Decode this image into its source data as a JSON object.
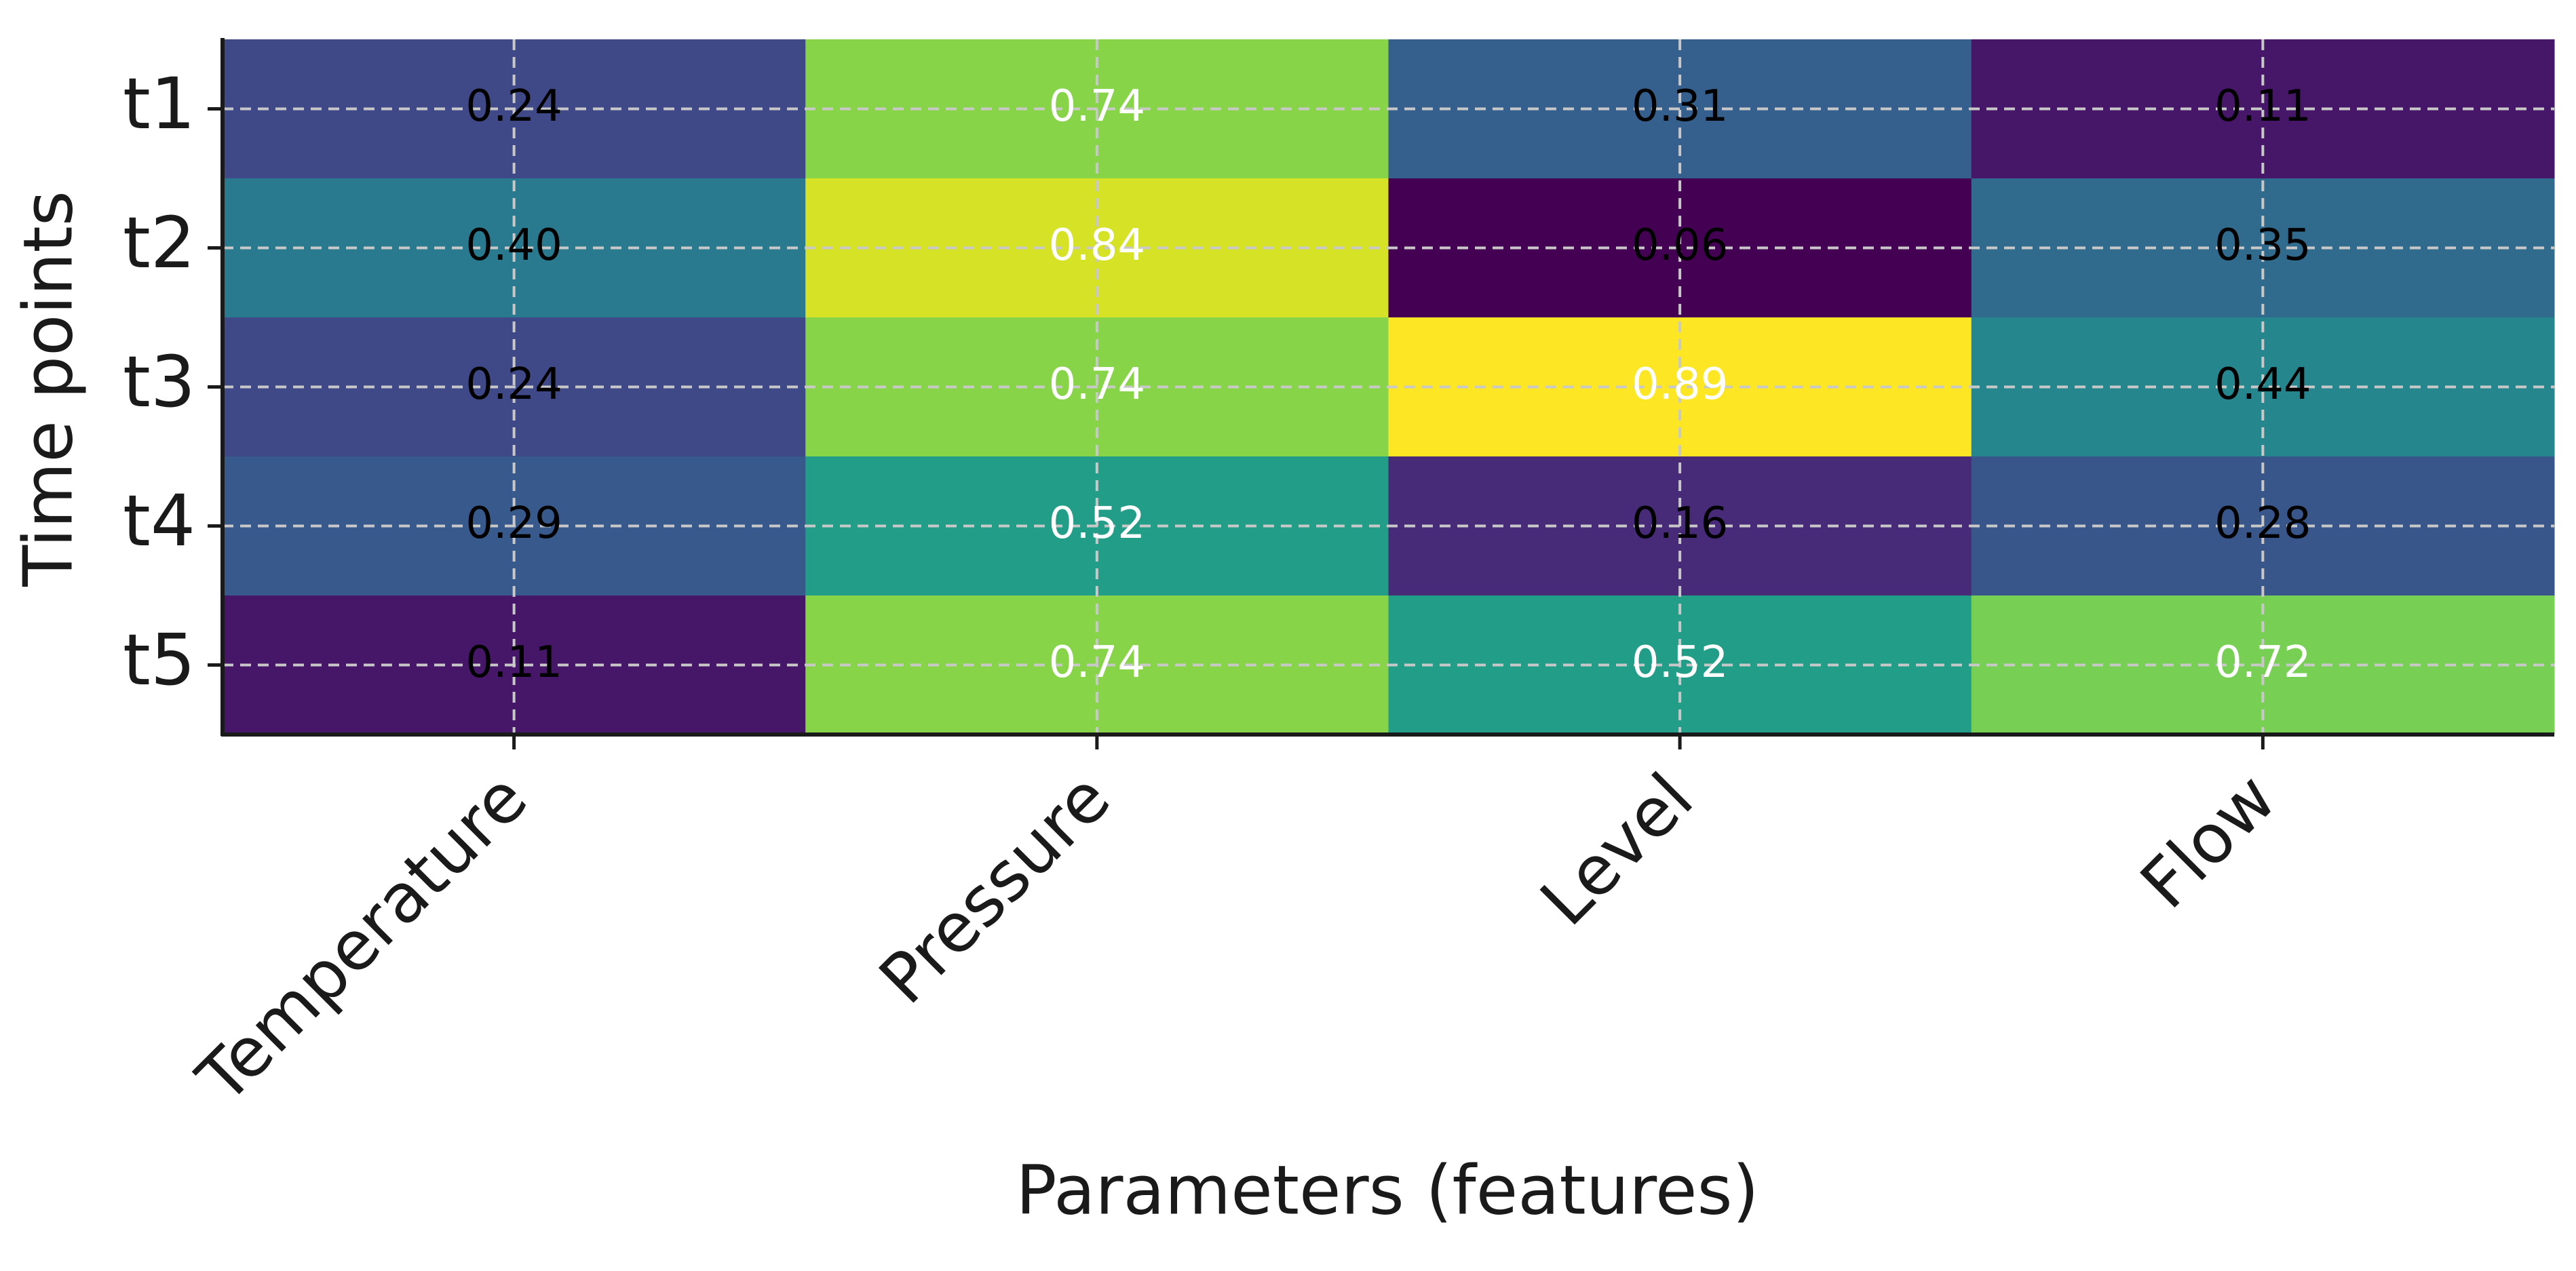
{
  "chart_data": {
    "type": "heatmap",
    "title": "",
    "xlabel": "Parameters (features)",
    "ylabel": "Time points",
    "x_categories": [
      "Temperature",
      "Pressure",
      "Level",
      "Flow"
    ],
    "y_categories": [
      "t1",
      "t2",
      "t3",
      "t4",
      "t5"
    ],
    "values": [
      [
        0.24,
        0.74,
        0.31,
        0.11
      ],
      [
        0.4,
        0.84,
        0.06,
        0.35
      ],
      [
        0.24,
        0.74,
        0.89,
        0.44
      ],
      [
        0.29,
        0.52,
        0.16,
        0.28
      ],
      [
        0.11,
        0.74,
        0.52,
        0.72
      ]
    ],
    "value_labels": [
      [
        "0.24",
        "0.74",
        "0.31",
        "0.11"
      ],
      [
        "0.40",
        "0.84",
        "0.06",
        "0.35"
      ],
      [
        "0.24",
        "0.74",
        "0.89",
        "0.44"
      ],
      [
        "0.29",
        "0.52",
        "0.16",
        "0.28"
      ],
      [
        "0.11",
        "0.74",
        "0.52",
        "0.72"
      ]
    ],
    "colormap": "viridis",
    "color_range": [
      0.06,
      0.89
    ],
    "grid": true,
    "label_colors": {
      "dark": "#000000",
      "light": "#ffffff"
    },
    "label_light_threshold": 0.5
  }
}
